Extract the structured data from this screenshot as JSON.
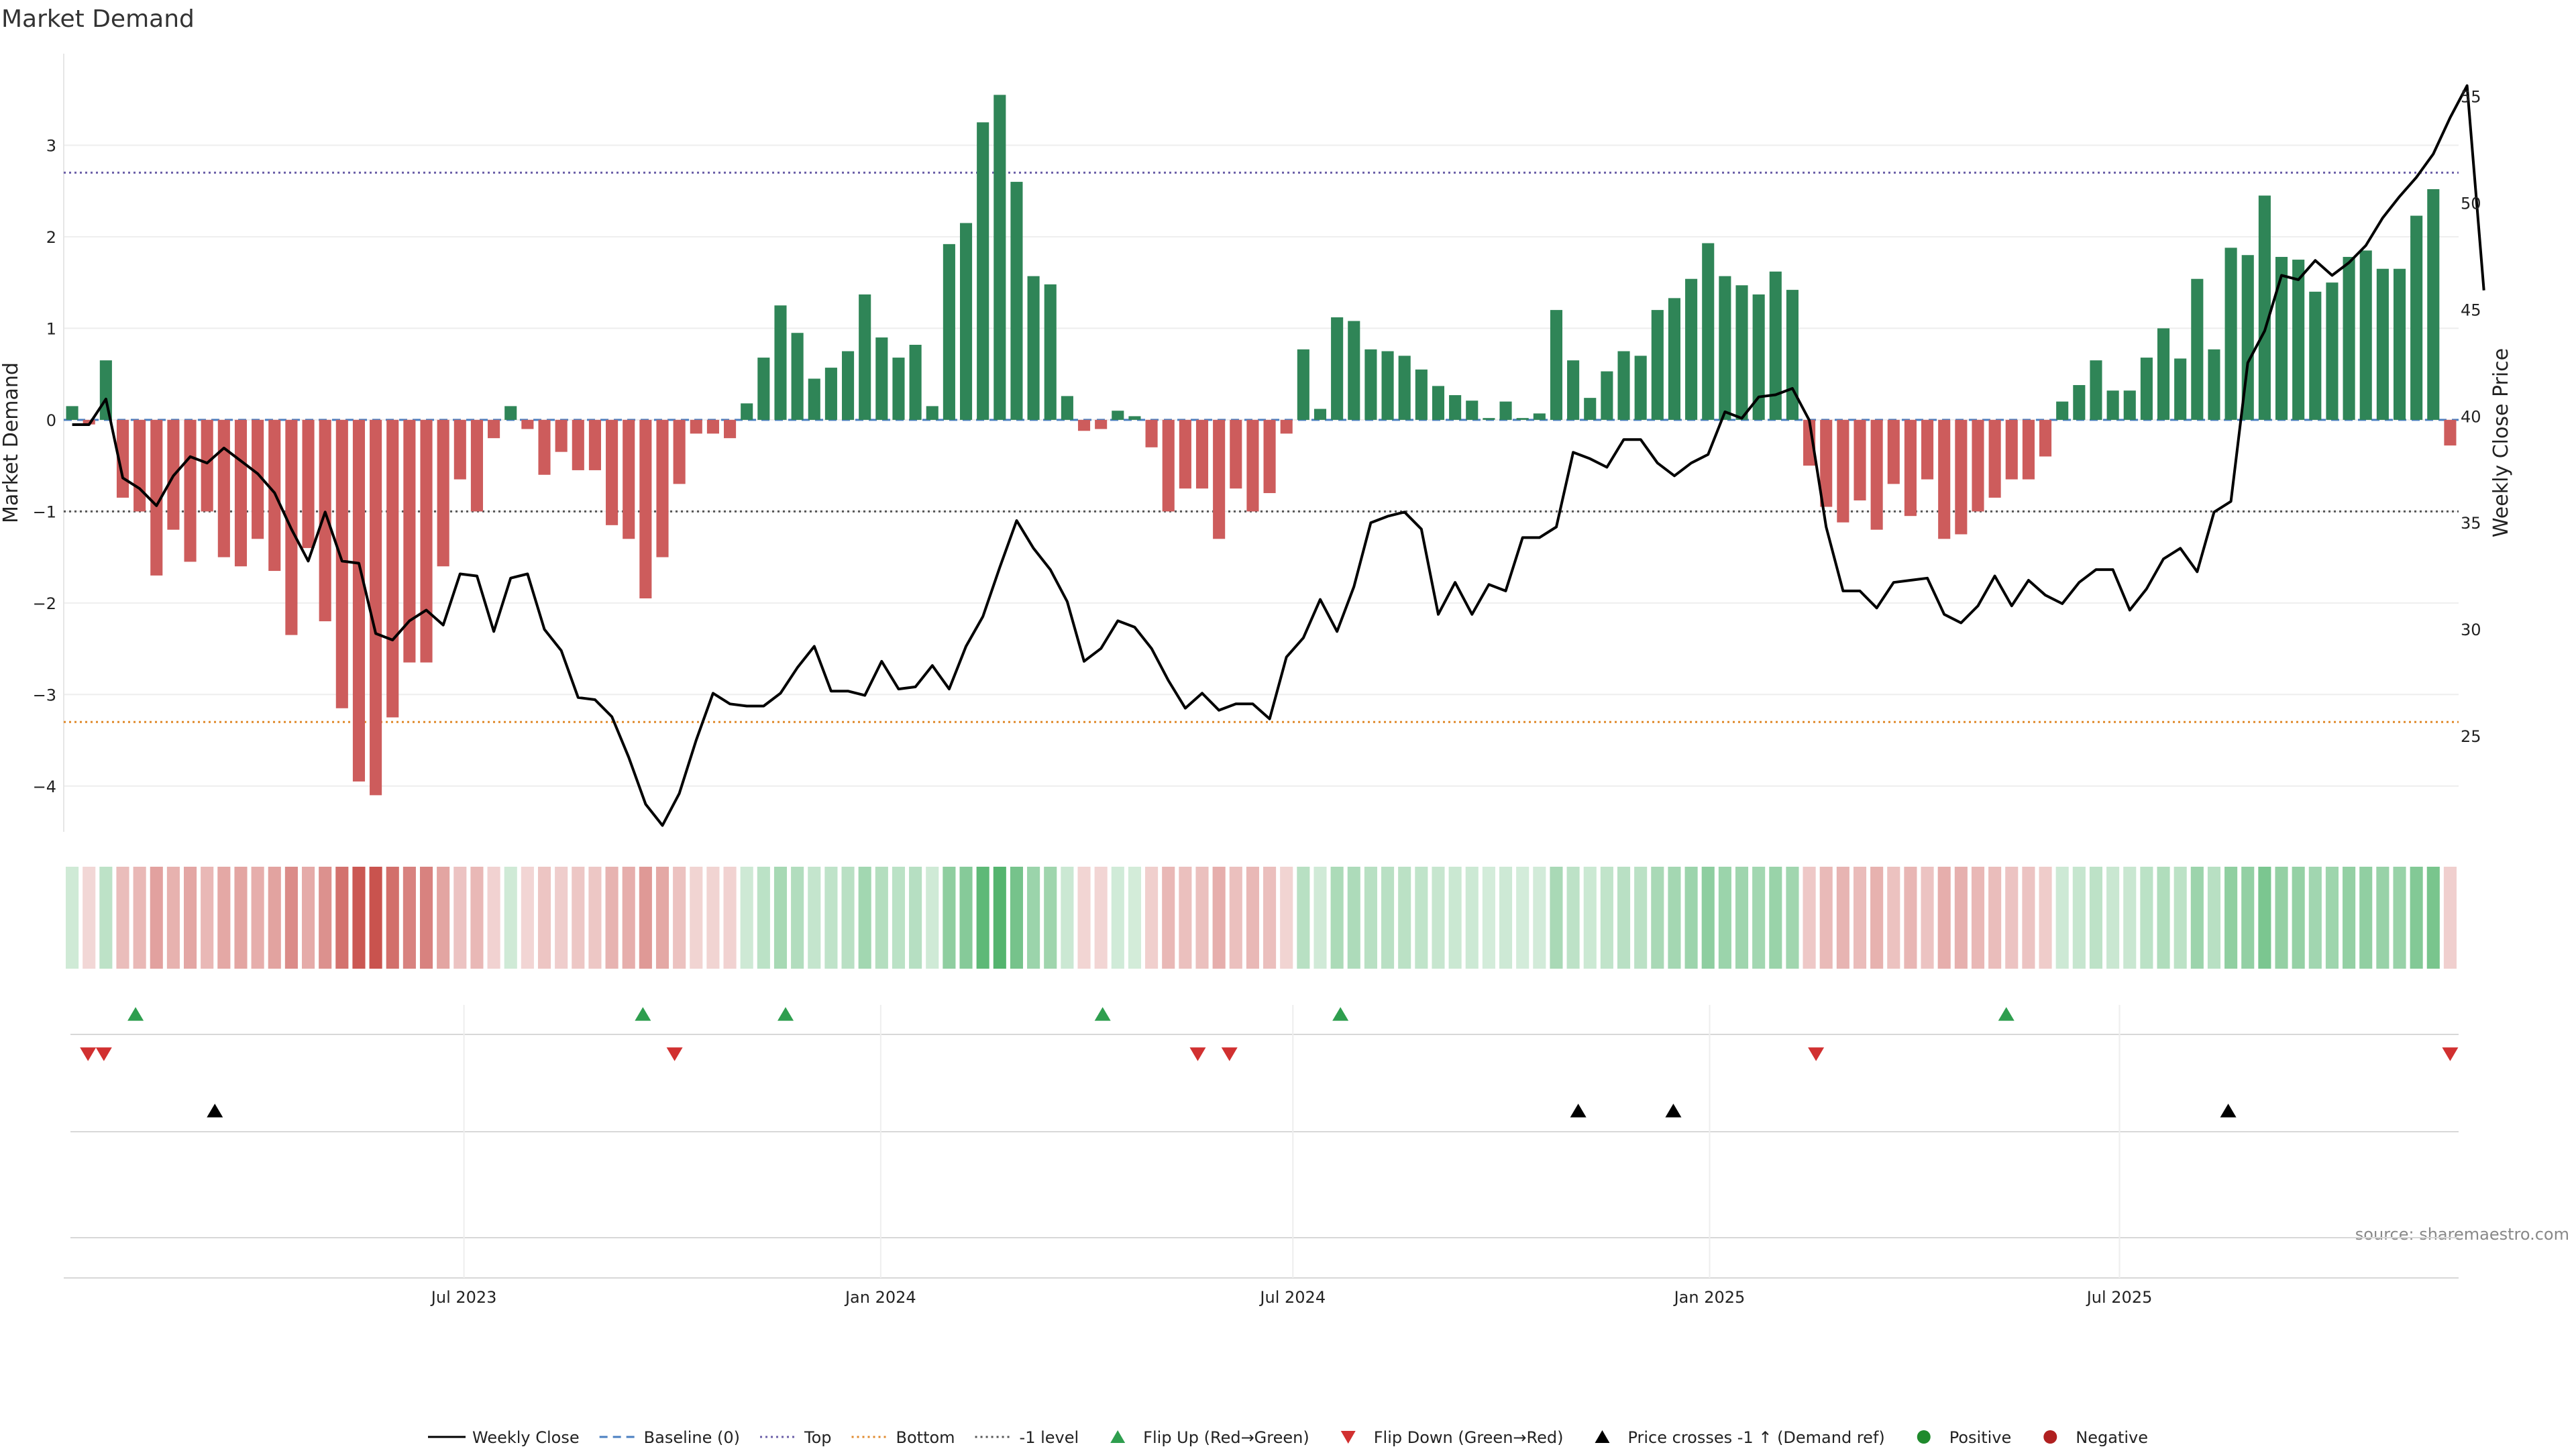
{
  "chart_data": {
    "type": "bar",
    "title": "Market Demand",
    "ylabel": "Market Demand",
    "y2label": "Weekly Close Price",
    "ylim": [
      -4.5,
      4.0
    ],
    "y2lim": [
      20.5,
      57.0
    ],
    "yticks": [
      -4,
      -3,
      -2,
      -1,
      0,
      1,
      2,
      3
    ],
    "y2ticks": [
      25,
      30,
      35,
      40,
      45,
      50,
      55
    ],
    "x_start": "2023-01-09",
    "x_end": "2025-11-24",
    "x_ticks": [
      {
        "date": "2023-07-01",
        "label": "Jul 2023"
      },
      {
        "date": "2024-01-01",
        "label": "Jan 2024"
      },
      {
        "date": "2024-07-01",
        "label": "Jul 2024"
      },
      {
        "date": "2025-01-01",
        "label": "Jan 2025"
      },
      {
        "date": "2025-07-01",
        "label": "Jul 2025"
      }
    ],
    "reference_lines": {
      "top": 2.7,
      "bottom": -3.3,
      "minus_one": -1.0,
      "baseline": 0
    },
    "series": [
      {
        "name": "Market Demand",
        "values": [
          0.15,
          -0.05,
          0.65,
          -0.85,
          -1.0,
          -1.7,
          -1.2,
          -1.55,
          -1.0,
          -1.5,
          -1.6,
          -1.3,
          -1.65,
          -2.35,
          -1.4,
          -2.2,
          -3.15,
          -3.95,
          -4.1,
          -3.25,
          -2.65,
          -2.65,
          -1.6,
          -0.65,
          -1.0,
          -0.2,
          0.15,
          -0.1,
          -0.6,
          -0.35,
          -0.55,
          -0.55,
          -1.15,
          -1.3,
          -1.95,
          -1.5,
          -0.7,
          -0.15,
          -0.15,
          -0.2,
          0.18,
          0.68,
          1.25,
          0.95,
          0.45,
          0.57,
          0.75,
          1.37,
          0.9,
          0.68,
          0.82,
          0.15,
          1.92,
          2.15,
          3.25,
          3.55,
          2.6,
          1.57,
          1.48,
          0.26,
          -0.12,
          -0.1,
          0.1,
          0.04,
          -0.3,
          -1.0,
          -0.75,
          -0.75,
          -1.3,
          -0.75,
          -1.0,
          -0.8,
          -0.15,
          0.77,
          0.12,
          1.12,
          1.08,
          0.77,
          0.75,
          0.7,
          0.55,
          0.37,
          0.27,
          0.21,
          0.02,
          0.2,
          0.02,
          0.07,
          1.2,
          0.65,
          0.24,
          0.53,
          0.75,
          0.7,
          1.2,
          1.33,
          1.54,
          1.93,
          1.57,
          1.47,
          1.37,
          1.62,
          1.42,
          -0.5,
          -0.95,
          -1.12,
          -0.88,
          -1.2,
          -0.7,
          -1.05,
          -0.65,
          -1.3,
          -1.25,
          -1.0,
          -0.85,
          -0.65,
          -0.65,
          -0.4,
          0.2,
          0.38,
          0.65,
          0.32,
          0.32,
          0.68,
          1.0,
          0.67,
          1.54,
          0.77,
          1.88,
          1.8,
          2.45,
          1.78,
          1.75,
          1.4,
          1.5,
          1.78,
          1.85,
          1.65,
          1.65,
          2.23,
          2.52,
          -0.28
        ]
      },
      {
        "name": "Weekly Close",
        "values": [
          39.6,
          39.6,
          40.8,
          37.1,
          36.6,
          35.8,
          37.2,
          38.1,
          37.8,
          38.5,
          37.9,
          37.3,
          36.4,
          34.7,
          33.2,
          35.5,
          33.2,
          33.1,
          29.8,
          29.5,
          30.4,
          30.9,
          30.2,
          32.6,
          32.5,
          29.9,
          32.4,
          32.6,
          30.0,
          29.0,
          26.8,
          26.7,
          25.9,
          24.0,
          21.8,
          20.8,
          22.3,
          24.8,
          27.0,
          26.5,
          26.4,
          26.4,
          27.0,
          28.2,
          29.2,
          27.1,
          27.1,
          26.9,
          28.5,
          27.2,
          27.3,
          28.3,
          27.2,
          29.2,
          30.6,
          32.9,
          35.1,
          33.8,
          32.8,
          31.3,
          28.5,
          29.1,
          30.4,
          30.1,
          29.1,
          27.6,
          26.3,
          27.0,
          26.2,
          26.5,
          26.5,
          25.8,
          28.7,
          29.6,
          31.4,
          29.9,
          32.0,
          35.0,
          35.3,
          35.5,
          34.7,
          30.7,
          32.2,
          30.7,
          32.1,
          31.8,
          34.3,
          34.3,
          34.8,
          38.3,
          38.0,
          37.6,
          38.9,
          38.9,
          37.8,
          37.2,
          37.8,
          38.2,
          40.2,
          39.9,
          40.9,
          41.0,
          41.3,
          39.8,
          34.8,
          31.8,
          31.8,
          31.0,
          32.2,
          32.3,
          32.4,
          30.7,
          30.3,
          31.1,
          32.5,
          31.1,
          32.3,
          31.6,
          31.2,
          32.2,
          32.8,
          32.8,
          30.9,
          31.9,
          33.3,
          33.8,
          32.7,
          35.5,
          36.0,
          42.5,
          44.0,
          46.6,
          46.4,
          47.3,
          46.6,
          47.2,
          48.0,
          49.3,
          50.3,
          51.2,
          52.3,
          54.0,
          55.5,
          45.9
        ]
      }
    ],
    "heat_strip": "color per week by Market Demand value",
    "flip_up_dates": [
      "2023-02-06",
      "2023-09-18",
      "2023-11-20",
      "2024-04-08",
      "2024-07-22",
      "2025-05-12"
    ],
    "flip_down_dates": [
      "2023-01-16",
      "2023-01-23",
      "2023-10-02",
      "2024-05-20",
      "2024-06-03",
      "2025-02-17",
      "2025-11-24"
    ],
    "price_cross_dates": [
      "2023-03-13",
      "2024-11-04",
      "2024-12-16",
      "2025-08-18"
    ],
    "legend": [
      {
        "label": "Weekly Close",
        "kind": "line",
        "color": "#000000",
        "dash": ""
      },
      {
        "label": "Baseline (0)",
        "kind": "line",
        "color": "#4a7fc1",
        "dash": "12,8"
      },
      {
        "label": "Top",
        "kind": "line",
        "color": "#6b5fa8",
        "dash": "3,5"
      },
      {
        "label": "Bottom",
        "kind": "line",
        "color": "#e08a2c",
        "dash": "3,5"
      },
      {
        "label": "-1 level",
        "kind": "line",
        "color": "#555555",
        "dash": "3,5"
      },
      {
        "label": "Flip Up (Red→Green)",
        "kind": "tri-up",
        "color": "#2e9e4e"
      },
      {
        "label": "Flip Down (Green→Red)",
        "kind": "tri-down",
        "color": "#d13030"
      },
      {
        "label": "Price crosses -1 ↑ (Demand ref)",
        "kind": "tri-up",
        "color": "#000000"
      },
      {
        "label": "Positive",
        "kind": "dot",
        "color": "#1f8a2c"
      },
      {
        "label": "Negative",
        "kind": "dot",
        "color": "#b02020"
      }
    ],
    "source": "source: sharemaestro.com"
  },
  "colors": {
    "positive": "#2f8557",
    "negative": "#cd5c5c",
    "price": "#000000"
  }
}
